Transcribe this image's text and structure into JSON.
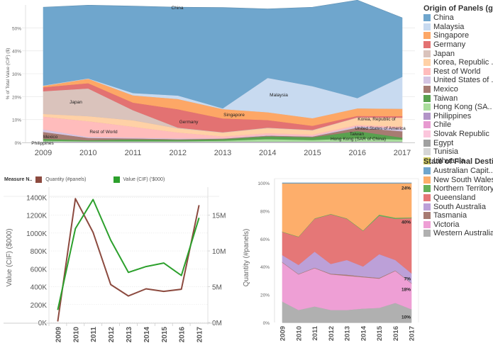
{
  "chart_data": [
    {
      "id": "origin",
      "type": "area",
      "stacked": true,
      "title": "",
      "ylabel": "% of Total Value (CIF) ($)",
      "xlabel": "",
      "x": [
        "2009",
        "2010",
        "2011",
        "2012",
        "2013",
        "2014",
        "2015",
        "2016",
        "2017"
      ],
      "ylim": [
        0,
        60
      ],
      "yticks": [
        "0%",
        "10%",
        "20%",
        "30%",
        "40%",
        "50%"
      ],
      "ytick_values": [
        0,
        10,
        20,
        30,
        40,
        50
      ],
      "grid": true,
      "legend_position": "right",
      "legend_title": "Origin of Panels (g..",
      "series": [
        {
          "name": "Philippines",
          "legend": "Philippines",
          "color": "#b294c7",
          "values": [
            0.3,
            0.3,
            0.3,
            0.3,
            0.3,
            0.3,
            0.3,
            0.3,
            0.3
          ]
        },
        {
          "name": "Hong Kong (SAR of China)",
          "legend": "Hong Kong (SA..",
          "color": "#a9dd9c",
          "values": [
            0.5,
            0.3,
            0.3,
            0.3,
            0.5,
            1.2,
            0.8,
            1.6,
            1.0
          ]
        },
        {
          "name": "Taiwan",
          "legend": "Taiwan",
          "color": "#59a14f",
          "values": [
            0.8,
            0.4,
            0.8,
            0.6,
            0.7,
            1.2,
            1.2,
            3.1,
            0.8
          ]
        },
        {
          "name": "Mexico",
          "legend": "Mexico",
          "color": "#a77b72",
          "values": [
            3.0,
            1.0,
            0.4,
            0.3,
            0.2,
            0.3,
            0.3,
            1.5,
            2.8
          ]
        },
        {
          "name": "United States of America",
          "legend": "United States of ..",
          "color": "#d4c5e3",
          "values": [
            1.1,
            0.4,
            0.3,
            0.3,
            0.2,
            0.3,
            0.2,
            0.6,
            1.2
          ]
        },
        {
          "name": "Slovak Republic",
          "legend": "Slovak Republic",
          "color": "#fbc6dc",
          "values": [
            0,
            0,
            0,
            0,
            0,
            0,
            0,
            0,
            0
          ]
        },
        {
          "name": "Chile",
          "legend": "Chile",
          "color": "#e79ad0",
          "values": [
            0,
            0,
            0,
            0,
            0,
            0,
            0,
            0,
            0
          ]
        },
        {
          "name": "Egypt",
          "legend": "Egypt",
          "color": "#a0a0a0",
          "values": [
            0,
            0,
            0,
            0,
            0,
            0,
            0,
            0,
            0
          ]
        },
        {
          "name": "Tunisia",
          "legend": "Tunisia",
          "color": "#d6d6d6",
          "values": [
            0,
            0,
            0,
            0,
            0,
            0,
            0,
            0,
            0
          ]
        },
        {
          "name": "Lithuania",
          "legend": "Lithuania",
          "color": "#d2cd5c",
          "values": [
            0,
            0,
            0,
            0,
            0,
            0,
            0,
            0,
            0
          ]
        },
        {
          "name": "Rest of World",
          "legend": "Rest of World",
          "color": "#ffbcbc",
          "values": [
            5.6,
            6.9,
            4.8,
            2.6,
            0.8,
            0.8,
            0.7,
            0.6,
            0.8
          ]
        },
        {
          "name": "Korea, Republic of",
          "legend": "Korea, Republic ..",
          "color": "#ffd1a6",
          "values": [
            1.2,
            2.2,
            2.8,
            1.8,
            1.6,
            2.2,
            1.8,
            3.2,
            3.9
          ]
        },
        {
          "name": "Japan",
          "legend": "Japan",
          "color": "#dac3bc",
          "values": [
            9.9,
            12.1,
            4.4,
            0.3,
            0.2,
            0.2,
            0.2,
            0.1,
            0.1
          ]
        },
        {
          "name": "Germany",
          "legend": "Germany",
          "color": "#e37272",
          "values": [
            1.7,
            2.3,
            3.3,
            8.0,
            6.0,
            3.3,
            1.8,
            0.6,
            0.6
          ]
        },
        {
          "name": "Singapore",
          "legend": "Singapore",
          "color": "#fda766",
          "values": [
            0.6,
            1.9,
            3.2,
            4.5,
            4.1,
            3.4,
            3.3,
            3.3,
            3.2
          ]
        },
        {
          "name": "Malaysia",
          "legend": "Malaysia",
          "color": "#c8daf0",
          "values": [
            0.2,
            0.2,
            1.0,
            1.5,
            0.3,
            15.0,
            14.0,
            4.5,
            14.0
          ]
        },
        {
          "name": "China",
          "legend": "China",
          "color": "#6fa6cd",
          "values": [
            34.1,
            31.9,
            37.9,
            38.5,
            44.0,
            30.1,
            34.4,
            42.7,
            25.7
          ]
        }
      ],
      "legend_order": [
        "China",
        "Malaysia",
        "Singapore",
        "Germany",
        "Japan",
        "Korea, Republic of",
        "Rest of World",
        "United States of America",
        "Mexico",
        "Taiwan",
        "Hong Kong (SAR of China)",
        "Philippines",
        "Chile",
        "Slovak Republic",
        "Egypt",
        "Tunisia",
        "Lithuania"
      ],
      "annotations": [
        {
          "text": "China",
          "series": "China",
          "x": "2012"
        },
        {
          "text": "Japan",
          "series": "Japan",
          "x": "2009.8"
        },
        {
          "text": "Rest of World",
          "series": "Rest of World",
          "x": "2010.4"
        },
        {
          "text": "Germany",
          "series": "Germany",
          "x": "2012.3"
        },
        {
          "text": "Singapore",
          "series": "Singapore",
          "x": "2013.3"
        },
        {
          "text": "Malaysia",
          "series": "Malaysia",
          "x": "2014.3"
        },
        {
          "text": "Mexico",
          "series": "Mexico",
          "x": "2009"
        },
        {
          "text": "Philippines",
          "series": "Philippines",
          "x": "2009"
        },
        {
          "text": "Korea, Republic of",
          "series": "Korea, Republic of",
          "x": "2016.6"
        },
        {
          "text": "United States of America",
          "series": "United States of America",
          "x": "2016.6"
        },
        {
          "text": "Taiwan",
          "series": "Taiwan",
          "x": "2015.9"
        },
        {
          "text": "Hong Kong (SAR of China)",
          "series": "Hong Kong (SAR of China)",
          "x": "2015.9"
        }
      ]
    },
    {
      "id": "trend",
      "type": "line",
      "title": "",
      "legend_title": "Measure N..",
      "legend_position": "top-left",
      "x": [
        "2009",
        "2010",
        "2011",
        "2012",
        "2013",
        "2014",
        "2015",
        "2016",
        "2017"
      ],
      "ylabel": "Value (CIF) ($000)",
      "ylabel2": "Quantity (#panels)",
      "ylim": [
        0,
        1450000
      ],
      "ylim2": [
        0,
        18125000
      ],
      "yticks": [
        "0K",
        "200K",
        "400K",
        "600K",
        "800K",
        "1000K",
        "1200K",
        "1400K"
      ],
      "ytick_values": [
        0,
        200000,
        400000,
        600000,
        800000,
        1000000,
        1200000,
        1400000
      ],
      "yticks2": [
        "0M",
        "5M",
        "10M",
        "15M"
      ],
      "ytick_values2": [
        0,
        5000000,
        10000000,
        15000000
      ],
      "grid": true,
      "series": [
        {
          "name": "Quantity (#panels)",
          "axis": "right",
          "color": "#8c4a3f",
          "values": [
            150000,
            17300000,
            12600000,
            5300000,
            3700000,
            4700000,
            4350000,
            4650000,
            16400000
          ]
        },
        {
          "name": "Value (CIF) ('$000)",
          "axis": "left",
          "color": "#2ca02c",
          "values": [
            140000,
            1050000,
            1375000,
            920000,
            560000,
            625000,
            665000,
            525000,
            1170000
          ]
        }
      ]
    },
    {
      "id": "state",
      "type": "area",
      "stacked": true,
      "percent": true,
      "title": "",
      "x": [
        "2009",
        "2010",
        "2011",
        "2012",
        "2013",
        "2014",
        "2015",
        "2016",
        "2017"
      ],
      "ylim": [
        0,
        100
      ],
      "yticks": [
        "0%",
        "20%",
        "40%",
        "60%",
        "80%",
        "100%"
      ],
      "ytick_values": [
        0,
        20,
        40,
        60,
        80,
        100
      ],
      "grid": true,
      "legend_position": "right",
      "legend_title": "State of Final Desti..",
      "series": [
        {
          "name": "Western Australia",
          "legend": "Western Australia",
          "color": "#b0b0b0",
          "values": [
            15,
            9,
            11.5,
            9,
            9,
            10,
            10.5,
            14,
            9.5
          ]
        },
        {
          "name": "Victoria",
          "legend": "Victoria",
          "color": "#ee9fd5",
          "values": [
            28,
            25.5,
            27.5,
            25.5,
            24.5,
            22.5,
            21,
            23,
            18.5
          ]
        },
        {
          "name": "Tasmania",
          "legend": "Tasmania",
          "color": "#a77b72",
          "values": [
            0.3,
            0.3,
            0.3,
            0.5,
            0.8,
            0.5,
            0.5,
            0.3,
            0.3
          ]
        },
        {
          "name": "South Australia",
          "legend": "South Australia",
          "color": "#bca0d8",
          "values": [
            5,
            6.5,
            11.5,
            7,
            10.5,
            7.2,
            17,
            7.5,
            7
          ]
        },
        {
          "name": "Queensland",
          "legend": "Queensland",
          "color": "#e57777",
          "values": [
            16.5,
            20,
            23.5,
            35.5,
            29.5,
            25.5,
            27.5,
            29.5,
            39.5
          ]
        },
        {
          "name": "Northern Territory",
          "legend": "Northern Territory",
          "color": "#66b05a",
          "values": [
            0.3,
            0.3,
            0.3,
            0.3,
            0.3,
            0.3,
            0.8,
            0.8,
            0.5
          ]
        },
        {
          "name": "New South Wales",
          "legend": "New South Wales",
          "color": "#fdae6b",
          "values": [
            34.6,
            38.1,
            25.1,
            21.9,
            25.1,
            33.7,
            22.4,
            24.6,
            24.5
          ]
        },
        {
          "name": "Australian Capital Territory",
          "legend": "Australian Capit..",
          "color": "#6fa6cd",
          "values": [
            0.3,
            0.3,
            0.3,
            0.3,
            0.3,
            0.3,
            0.3,
            0.3,
            0.2
          ]
        }
      ],
      "legend_order": [
        "Australian Capital Territory",
        "New South Wales",
        "Northern Territory",
        "Queensland",
        "South Australia",
        "Tasmania",
        "Victoria",
        "Western Australia"
      ],
      "annotations": [
        {
          "text": "24%",
          "series": "New South Wales",
          "x": "2017"
        },
        {
          "text": "40%",
          "series": "Queensland",
          "x": "2017"
        },
        {
          "text": "7%",
          "series": "South Australia",
          "x": "2017"
        },
        {
          "text": "18%",
          "series": "Victoria",
          "x": "2017"
        },
        {
          "text": "10%",
          "series": "Western Australia",
          "x": "2017"
        }
      ]
    }
  ],
  "legends": {
    "origin_title": "Origin of Panels (g..",
    "state_title": "State of Final Desti..",
    "measure_title": "Measure N..",
    "measure_items": [
      {
        "label": "Quantity (#panels)",
        "color": "#8c4a3f"
      },
      {
        "label": "Value (CIF) ('$000)",
        "color": "#2ca02c"
      }
    ]
  }
}
